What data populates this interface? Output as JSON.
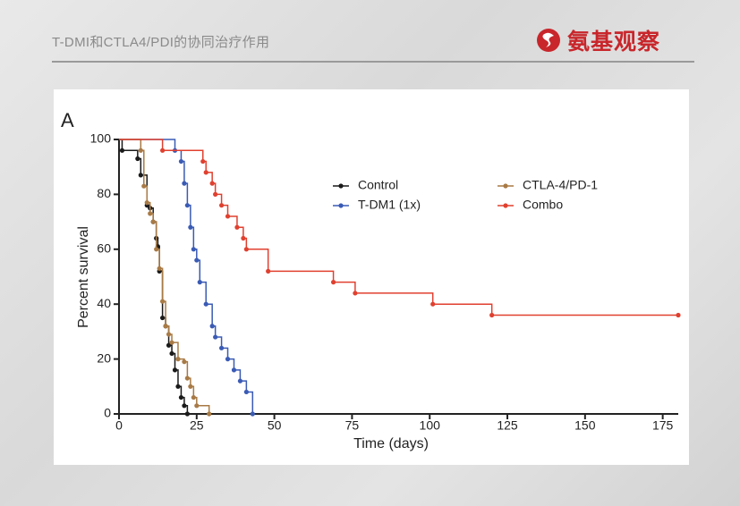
{
  "header": {
    "title": "T-DMI和CTLA4/PDI的协同治疗作用",
    "logo": "氨基观察"
  },
  "chart_data": {
    "type": "line",
    "step": true,
    "panel_label": "A",
    "x_label": "Time (days)",
    "y_label": "Percent survival",
    "xlim": [
      0,
      180
    ],
    "ylim": [
      0,
      100
    ],
    "xticks": [
      0,
      25,
      50,
      75,
      100,
      125,
      150,
      175
    ],
    "yticks": [
      0,
      20,
      40,
      60,
      80,
      100
    ],
    "series": [
      {
        "name": "Control",
        "color": "#1a1a1a",
        "x": [
          0,
          1,
          6,
          7,
          9,
          10,
          11,
          12,
          12.5,
          13,
          14,
          15,
          16,
          17,
          18,
          19,
          20,
          21,
          22
        ],
        "values": [
          100,
          96,
          93,
          87,
          76,
          75,
          70,
          64,
          61,
          52,
          35,
          32,
          25,
          22,
          16,
          10,
          6,
          3,
          0
        ]
      },
      {
        "name": "T-DM1 (1x)",
        "color": "#3a5bb5",
        "x": [
          0,
          18,
          20,
          21,
          22,
          23,
          24,
          25,
          26,
          28,
          30,
          31,
          33,
          35,
          37,
          39,
          41,
          43
        ],
        "values": [
          100,
          96,
          92,
          84,
          76,
          68,
          60,
          56,
          48,
          40,
          32,
          28,
          24,
          20,
          16,
          12,
          8,
          0
        ]
      },
      {
        "name": "CTLA-4/PD-1",
        "color": "#a87a45",
        "x": [
          0,
          7,
          8,
          9,
          10,
          11,
          12,
          13,
          14,
          15,
          16,
          17,
          19,
          21,
          22,
          23,
          24,
          25,
          29
        ],
        "values": [
          100,
          96,
          83,
          77,
          73,
          70,
          60,
          53,
          41,
          32,
          29,
          26,
          20,
          19,
          13,
          10,
          6,
          3,
          0
        ]
      },
      {
        "name": "Combo",
        "color": "#e0402f",
        "x": [
          0,
          14,
          27,
          28,
          30,
          31,
          33,
          35,
          38,
          40,
          41,
          48,
          69,
          76,
          101,
          120,
          180
        ],
        "values": [
          100,
          96,
          92,
          88,
          84,
          80,
          76,
          72,
          68,
          64,
          60,
          52,
          48,
          44,
          40,
          36,
          36
        ]
      }
    ]
  }
}
